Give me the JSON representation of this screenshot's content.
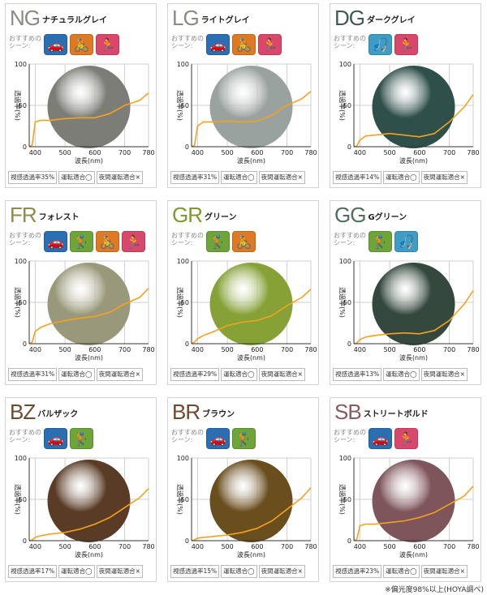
{
  "cards": [
    {
      "code": "NG",
      "name": "ナチュラルグレイ",
      "color": "#8a8a84",
      "lens": "#7d7d77",
      "icons": [
        {
          "name": "drive-icon",
          "glyph": "🚗",
          "kind": "drive"
        },
        {
          "name": "cycle-icon",
          "glyph": "🚴",
          "kind": "cycle"
        },
        {
          "name": "run-icon",
          "glyph": "🏃",
          "kind": "run"
        }
      ],
      "vlt": "視感透過率35%",
      "driving": "運転適合◯",
      "night": "夜間運転適合×",
      "curve": [
        [
          380,
          0
        ],
        [
          390,
          2
        ],
        [
          400,
          30
        ],
        [
          420,
          32
        ],
        [
          450,
          32
        ],
        [
          500,
          34
        ],
        [
          550,
          35
        ],
        [
          600,
          35
        ],
        [
          650,
          40
        ],
        [
          700,
          50
        ],
        [
          750,
          56
        ],
        [
          780,
          65
        ]
      ]
    },
    {
      "code": "LG",
      "name": "ライトグレイ",
      "color": "#8a8a84",
      "lens": "#9aa2a0",
      "icons": [
        {
          "name": "drive-icon",
          "glyph": "🚗",
          "kind": "drive"
        },
        {
          "name": "cycle-icon",
          "glyph": "🚴",
          "kind": "cycle"
        },
        {
          "name": "run-icon",
          "glyph": "🏃",
          "kind": "run"
        }
      ],
      "vlt": "視感透過率31%",
      "driving": "運転適合◯",
      "night": "夜間運転適合×",
      "curve": [
        [
          380,
          0
        ],
        [
          390,
          2
        ],
        [
          400,
          25
        ],
        [
          420,
          30
        ],
        [
          450,
          30
        ],
        [
          500,
          31
        ],
        [
          550,
          30
        ],
        [
          600,
          31
        ],
        [
          650,
          38
        ],
        [
          700,
          50
        ],
        [
          750,
          58
        ],
        [
          780,
          67
        ]
      ]
    },
    {
      "code": "DG",
      "name": "ダークグレイ",
      "color": "#3f5a55",
      "lens": "#2f4f4a",
      "icons": [
        {
          "name": "fish-icon",
          "glyph": "🎣",
          "kind": "fish"
        },
        {
          "name": "run-icon",
          "glyph": "🏃",
          "kind": "run"
        }
      ],
      "vlt": "視感透過率14%",
      "driving": "運転適合◯",
      "night": "夜間運転適合×",
      "curve": [
        [
          380,
          0
        ],
        [
          390,
          1
        ],
        [
          400,
          8
        ],
        [
          420,
          13
        ],
        [
          450,
          14
        ],
        [
          500,
          16
        ],
        [
          550,
          14
        ],
        [
          600,
          12
        ],
        [
          650,
          16
        ],
        [
          700,
          30
        ],
        [
          750,
          48
        ],
        [
          780,
          63
        ]
      ]
    },
    {
      "code": "FR",
      "name": "フォレスト",
      "color": "#8c8c4e",
      "lens": "#9a987a",
      "icons": [
        {
          "name": "drive-icon",
          "glyph": "🚗",
          "kind": "drive"
        },
        {
          "name": "golf-icon",
          "glyph": "🏌",
          "kind": "golf"
        },
        {
          "name": "cycle-icon",
          "glyph": "🚴",
          "kind": "cycle"
        },
        {
          "name": "run-icon",
          "glyph": "🏃",
          "kind": "run"
        }
      ],
      "vlt": "視感透過率31%",
      "driving": "運転適合◯",
      "night": "夜間運転適合×",
      "curve": [
        [
          380,
          0
        ],
        [
          390,
          2
        ],
        [
          400,
          15
        ],
        [
          420,
          20
        ],
        [
          450,
          24
        ],
        [
          500,
          28
        ],
        [
          550,
          31
        ],
        [
          600,
          33
        ],
        [
          650,
          38
        ],
        [
          700,
          48
        ],
        [
          750,
          56
        ],
        [
          780,
          67
        ]
      ]
    },
    {
      "code": "GR",
      "name": "グリーン",
      "color": "#7c9a2a",
      "lens": "#86a236",
      "icons": [
        {
          "name": "golf-icon",
          "glyph": "🏌",
          "kind": "golf"
        },
        {
          "name": "cycle-icon",
          "glyph": "🚴",
          "kind": "cycle"
        }
      ],
      "vlt": "視感透過率29%",
      "driving": "運転適合◯",
      "night": "夜間運転適合×",
      "curve": [
        [
          380,
          0
        ],
        [
          390,
          2
        ],
        [
          400,
          6
        ],
        [
          420,
          10
        ],
        [
          450,
          14
        ],
        [
          500,
          22
        ],
        [
          550,
          26
        ],
        [
          600,
          28
        ],
        [
          650,
          34
        ],
        [
          700,
          46
        ],
        [
          750,
          56
        ],
        [
          780,
          66
        ]
      ]
    },
    {
      "code": "GG",
      "name": "Gグリーン",
      "color": "#4f6e5e",
      "lens": "#34483e",
      "icons": [
        {
          "name": "golf-icon",
          "glyph": "🏌",
          "kind": "golf"
        },
        {
          "name": "fish-icon",
          "glyph": "🎣",
          "kind": "fish"
        }
      ],
      "vlt": "視感透過率13%",
      "driving": "運転適合◯",
      "night": "夜間運転適合×",
      "curve": [
        [
          380,
          0
        ],
        [
          390,
          1
        ],
        [
          400,
          5
        ],
        [
          420,
          8
        ],
        [
          450,
          10
        ],
        [
          500,
          12
        ],
        [
          550,
          13
        ],
        [
          600,
          12
        ],
        [
          650,
          16
        ],
        [
          700,
          28
        ],
        [
          750,
          48
        ],
        [
          780,
          64
        ]
      ]
    },
    {
      "code": "BZ",
      "name": "バルザック",
      "color": "#6e4a2e",
      "lens": "#5a3c26",
      "icons": [
        {
          "name": "drive-icon",
          "glyph": "🚗",
          "kind": "drive"
        },
        {
          "name": "golf-icon",
          "glyph": "🏌",
          "kind": "golf"
        }
      ],
      "vlt": "視感透過率17%",
      "driving": "運転適合◯",
      "night": "夜間運転適合×",
      "curve": [
        [
          380,
          0
        ],
        [
          390,
          1
        ],
        [
          400,
          4
        ],
        [
          420,
          6
        ],
        [
          450,
          8
        ],
        [
          500,
          10
        ],
        [
          550,
          14
        ],
        [
          600,
          20
        ],
        [
          650,
          28
        ],
        [
          700,
          40
        ],
        [
          750,
          52
        ],
        [
          780,
          63
        ]
      ]
    },
    {
      "code": "BR",
      "name": "ブラウン",
      "color": "#6e4a2e",
      "lens": "#6a4e1e",
      "icons": [
        {
          "name": "drive-icon",
          "glyph": "🚗",
          "kind": "drive"
        },
        {
          "name": "golf-icon",
          "glyph": "🏌",
          "kind": "golf"
        }
      ],
      "vlt": "視感透過率15%",
      "driving": "運転適合◯",
      "night": "夜間運転適合×",
      "curve": [
        [
          380,
          0
        ],
        [
          390,
          1
        ],
        [
          400,
          3
        ],
        [
          420,
          4
        ],
        [
          450,
          5
        ],
        [
          500,
          7
        ],
        [
          550,
          10
        ],
        [
          600,
          15
        ],
        [
          650,
          24
        ],
        [
          700,
          38
        ],
        [
          750,
          52
        ],
        [
          780,
          64
        ]
      ]
    },
    {
      "code": "SB",
      "name": "ストリートボルド",
      "color": "#8a5a62",
      "lens": "#7e555a",
      "icons": [
        {
          "name": "drive-icon",
          "glyph": "🚗",
          "kind": "drive"
        },
        {
          "name": "run-icon",
          "glyph": "🏃",
          "kind": "run"
        }
      ],
      "vlt": "視感透過率23%",
      "driving": "運転適合◯",
      "night": "夜間運転適合×",
      "curve": [
        [
          380,
          0
        ],
        [
          390,
          2
        ],
        [
          400,
          18
        ],
        [
          420,
          20
        ],
        [
          450,
          20
        ],
        [
          500,
          22
        ],
        [
          550,
          24
        ],
        [
          600,
          28
        ],
        [
          650,
          34
        ],
        [
          700,
          44
        ],
        [
          750,
          54
        ],
        [
          780,
          66
        ]
      ]
    }
  ],
  "labels": {
    "recommend": "おすすめの\nシーン:",
    "ylabel": "透過率(%)",
    "xlabel": "波長(nm)",
    "xticks": [
      "400",
      "500",
      "600",
      "700",
      "780"
    ],
    "yticks": [
      "0",
      "50",
      "100"
    ]
  },
  "footnote": "※偏光度98%以上(HOYA調べ)"
}
